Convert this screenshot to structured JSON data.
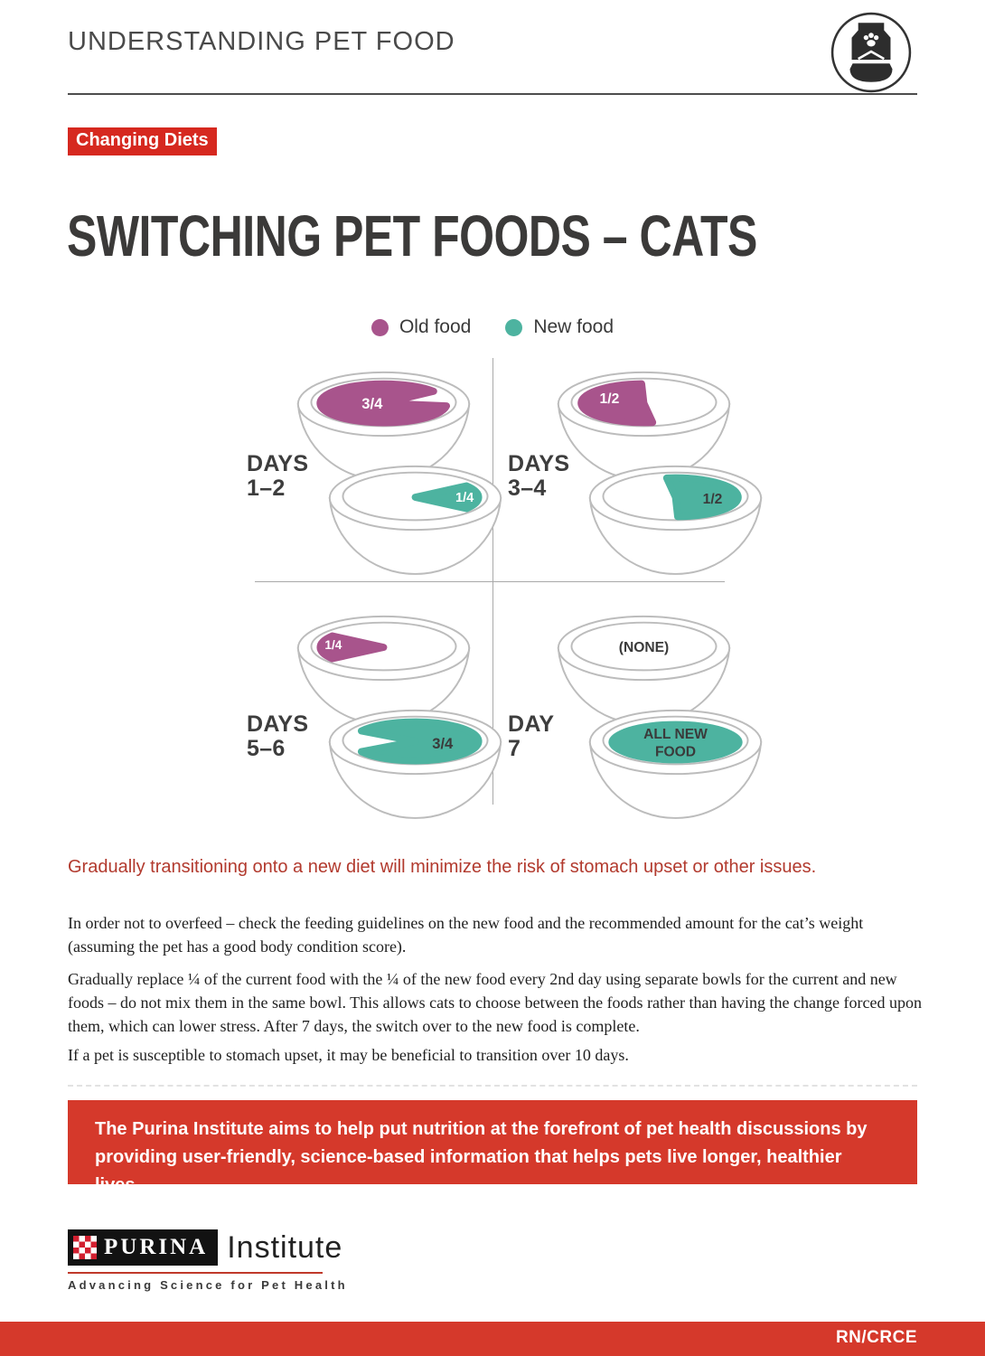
{
  "header": {
    "title": "UNDERSTANDING PET FOOD",
    "icon": "pet-food-bag-and-bowl-icon"
  },
  "badge": "Changing Diets",
  "title": "SWITCHING PET FOODS – CATS",
  "colors": {
    "old_food": "#a8548c",
    "new_food": "#4db3a0",
    "accent_red": "#d5392b",
    "badge_red": "#d6281f",
    "highlight_red": "#b23a2e",
    "bowl_outline": "#bcbcbc",
    "text_dark": "#3a3a3a"
  },
  "legend": {
    "old": {
      "label": "Old food"
    },
    "new": {
      "label": "New food"
    }
  },
  "diagram": {
    "quadrants": [
      {
        "days_label": [
          "DAYS",
          "1–2"
        ],
        "bowls": [
          {
            "food": "old",
            "portion": "three-quarters-left",
            "label": "3/4",
            "label_color": "#ffffff"
          },
          {
            "food": "new",
            "portion": "quarter-right",
            "label": "1/4",
            "label_color": "#ffffff"
          }
        ]
      },
      {
        "days_label": [
          "DAYS",
          "3–4"
        ],
        "bowls": [
          {
            "food": "old",
            "portion": "half-left",
            "label": "1/2",
            "label_color": "#ffffff"
          },
          {
            "food": "new",
            "portion": "half-right",
            "label": "1/2",
            "label_color": "#3a3a3a"
          }
        ]
      },
      {
        "days_label": [
          "DAYS",
          "5–6"
        ],
        "bowls": [
          {
            "food": "old",
            "portion": "quarter-left",
            "label": "1/4",
            "label_color": "#ffffff"
          },
          {
            "food": "new",
            "portion": "three-quarters-right",
            "label": "3/4",
            "label_color": "#3a3a3a"
          }
        ]
      },
      {
        "days_label": [
          "DAY",
          "7"
        ],
        "bowls": [
          {
            "food": "none",
            "portion": "none",
            "label": "(NONE)",
            "label_color": "#3a3a3a"
          },
          {
            "food": "new",
            "portion": "full",
            "label": [
              "ALL NEW",
              "FOOD"
            ],
            "label_color": "#3a3a3a"
          }
        ]
      }
    ]
  },
  "highlight": "Gradually transitioning onto a new diet will minimize the risk of stomach upset or other issues.",
  "paragraphs": [
    "In order not to overfeed – check the feeding guidelines on the new food and the recommended amount for the cat’s weight (assuming the pet has a good body condition score).",
    "Gradually replace ¼ of the current food with the ¼ of the new food every 2nd day using separate bowls for the current and new foods – do not mix them in the same bowl. This allows cats to choose between the foods rather than having the change forced upon them, which can lower stress. After 7 days, the switch over to the new food is complete.",
    "If a pet is susceptible to stomach upset, it may be beneficial to transition over 10 days."
  ],
  "banner": "The Purina Institute aims to help put nutrition at the forefront of pet health discussions by providing user-friendly, science-based information that helps pets live longer, healthier lives.",
  "logo": {
    "brand": "PURINA",
    "suffix": "Institute",
    "tagline": "Advancing Science for Pet Health"
  },
  "footer": {
    "code": "RN/CRCE"
  }
}
